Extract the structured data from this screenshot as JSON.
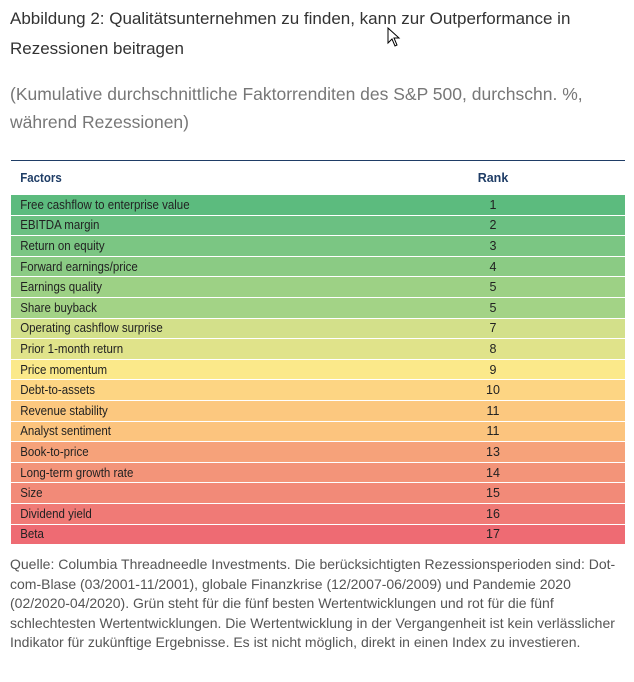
{
  "title": "Abbildung 2: Qualitätsunternehmen zu finden, kann zur Outperformance in Rezessionen beitragen",
  "subtitle": "(Kumulative durchschnittliche Faktorrenditen des S&P 500, durchschn. %, während Rezessionen)",
  "table": {
    "headers": {
      "factor": "Factors",
      "rank": "Rank"
    },
    "rows": [
      {
        "factor": "Free cashflow to enterprise value",
        "rank": "1",
        "color": "#5cbb7e"
      },
      {
        "factor": "EBITDA margin",
        "rank": "2",
        "color": "#6bc082"
      },
      {
        "factor": "Return on equity",
        "rank": "3",
        "color": "#7bc683"
      },
      {
        "factor": "Forward earnings/price",
        "rank": "4",
        "color": "#8bcb84"
      },
      {
        "factor": "Earnings quality",
        "rank": "5",
        "color": "#9dd185"
      },
      {
        "factor": "Share buyback",
        "rank": "5",
        "color": "#a3d386"
      },
      {
        "factor": "Operating cashflow surprise",
        "rank": "7",
        "color": "#d3e08a"
      },
      {
        "factor": "Prior 1-month return",
        "rank": "8",
        "color": "#e0e38a"
      },
      {
        "factor": "Price momentum",
        "rank": "9",
        "color": "#fbe98a"
      },
      {
        "factor": "Debt-to-assets",
        "rank": "10",
        "color": "#fdd583"
      },
      {
        "factor": "Revenue stability",
        "rank": "11",
        "color": "#fcc87f"
      },
      {
        "factor": "Analyst sentiment",
        "rank": "11",
        "color": "#fcc47e"
      },
      {
        "factor": "Book-to-price",
        "rank": "13",
        "color": "#f6a27a"
      },
      {
        "factor": "Long-term growth rate",
        "rank": "14",
        "color": "#f39479"
      },
      {
        "factor": "Size",
        "rank": "15",
        "color": "#f28a78"
      },
      {
        "factor": "Dividend yield",
        "rank": "16",
        "color": "#f07a76"
      },
      {
        "factor": "Beta",
        "rank": "17",
        "color": "#ee6b73"
      }
    ]
  },
  "footer": "Quelle: Columbia Threadneedle Investments. Die berücksichtigten Rezessionsperioden sind: Dot-com-Blase (03/2001-11/2001), globale Finanzkrise (12/2007-06/2009) und Pandemie 2020 (02/2020-04/2020). Grün steht für die fünf besten Wertentwicklungen und rot für die fünf schlechtesten Wertentwicklungen. Die Wertentwicklung in der Vergangenheit ist kein verlässlicher Indikator für zukünftige Ergebnisse. Es ist nicht möglich, direkt in einen Index zu investieren."
}
